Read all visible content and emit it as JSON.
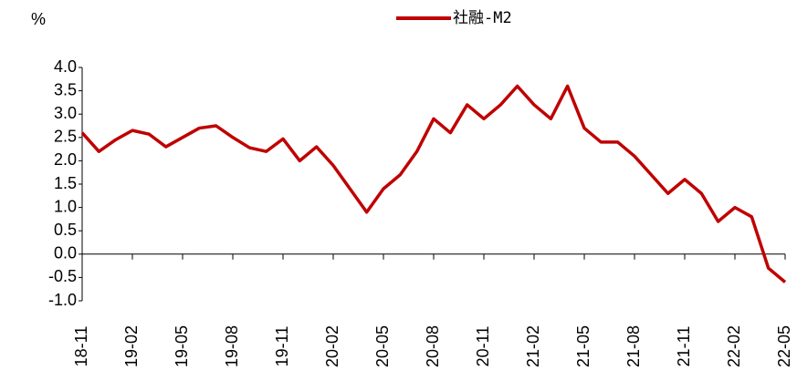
{
  "chart_data": {
    "type": "line",
    "unit_label": "%",
    "categories": [
      "18-11",
      null,
      null,
      "19-02",
      null,
      null,
      "19-05",
      null,
      null,
      "19-08",
      null,
      null,
      "19-11",
      null,
      null,
      "20-02",
      null,
      null,
      "20-05",
      null,
      null,
      "20-08",
      null,
      null,
      "20-11",
      null,
      null,
      "21-02",
      null,
      null,
      "21-05",
      null,
      null,
      "21-08",
      null,
      null,
      "21-11",
      null,
      null,
      "22-02",
      null,
      null,
      "22-05"
    ],
    "series": [
      {
        "name": "社融-M2",
        "color": "#c00000",
        "values": [
          2.6,
          2.2,
          2.45,
          2.65,
          2.57,
          2.3,
          2.5,
          2.7,
          2.75,
          2.5,
          2.28,
          2.2,
          2.47,
          2.0,
          2.3,
          1.9,
          1.4,
          0.9,
          1.4,
          1.7,
          2.2,
          2.9,
          2.6,
          3.2,
          2.9,
          3.2,
          3.6,
          3.2,
          2.9,
          3.6,
          2.7,
          2.4,
          2.4,
          2.1,
          1.7,
          1.3,
          1.6,
          1.3,
          0.7,
          1.0,
          0.8,
          -0.3,
          -0.6
        ]
      }
    ],
    "ylim": [
      -1,
      4
    ],
    "yticks": [
      {
        "value": -1,
        "label": "-1.0"
      },
      -0.5,
      {
        "value": 0,
        "label": "0.0"
      },
      0.5,
      {
        "value": 1,
        "label": "1.0"
      },
      1.5,
      {
        "value": 2,
        "label": "2.0"
      },
      2.5,
      {
        "value": 3,
        "label": "3.0"
      },
      3.5,
      {
        "value": 4,
        "label": "4.0"
      }
    ],
    "legend": "top"
  }
}
